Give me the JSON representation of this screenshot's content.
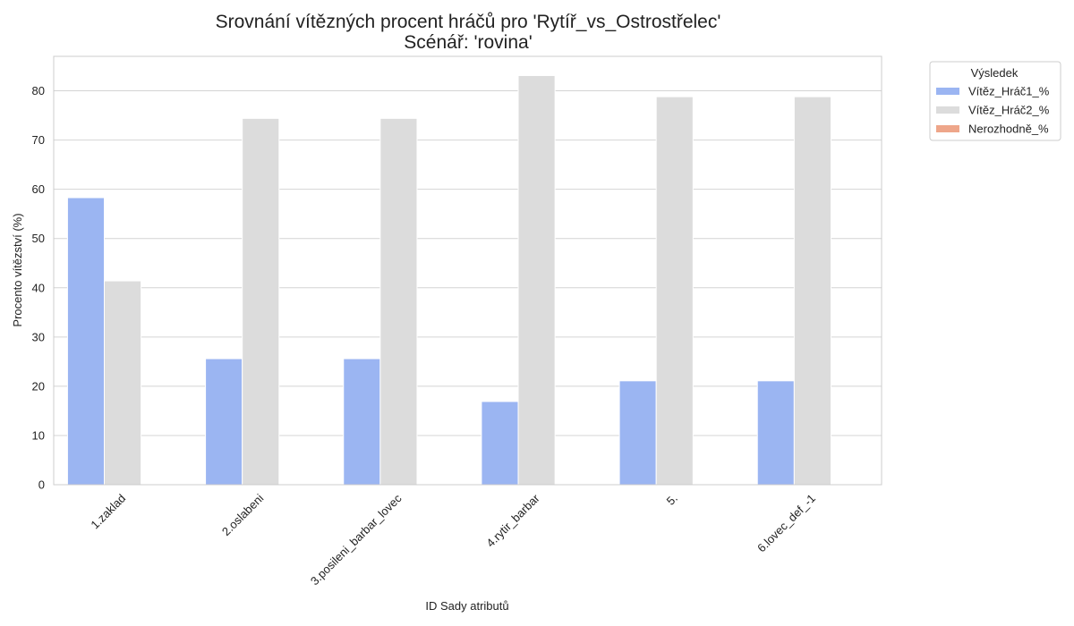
{
  "chart_data": {
    "type": "bar",
    "title": "Srovnání vítězných procent hráčů pro 'Rytíř_vs_Ostrostřelec'",
    "subtitle": "Scénář: 'rovina'",
    "xlabel": "ID Sady atributů",
    "ylabel": "Procento vítězství (%)",
    "ylim": [
      0,
      87
    ],
    "yticks": [
      0,
      10,
      20,
      30,
      40,
      50,
      60,
      70,
      80
    ],
    "grid": true,
    "legend_title": "Výsledek",
    "legend_position": "outside-top-right",
    "categories": [
      "1.zaklad",
      "2.oslabeni",
      "3.posileni_barbar_lovec",
      "4.rytir_barbar",
      "5.",
      "6.lovec_def_-1"
    ],
    "series": [
      {
        "name": "Vítěz_Hráč1_%",
        "color": "#9bb5f2",
        "values": [
          58.3,
          25.6,
          25.6,
          16.9,
          21.1,
          21.1
        ]
      },
      {
        "name": "Vítěz_Hráč2_%",
        "color": "#dcdcdc",
        "values": [
          41.4,
          74.4,
          74.4,
          83.1,
          78.8,
          78.8
        ]
      },
      {
        "name": "Nerozhodně_%",
        "color": "#eea68a",
        "values": [
          0,
          0,
          0,
          0,
          0,
          0
        ]
      }
    ]
  }
}
